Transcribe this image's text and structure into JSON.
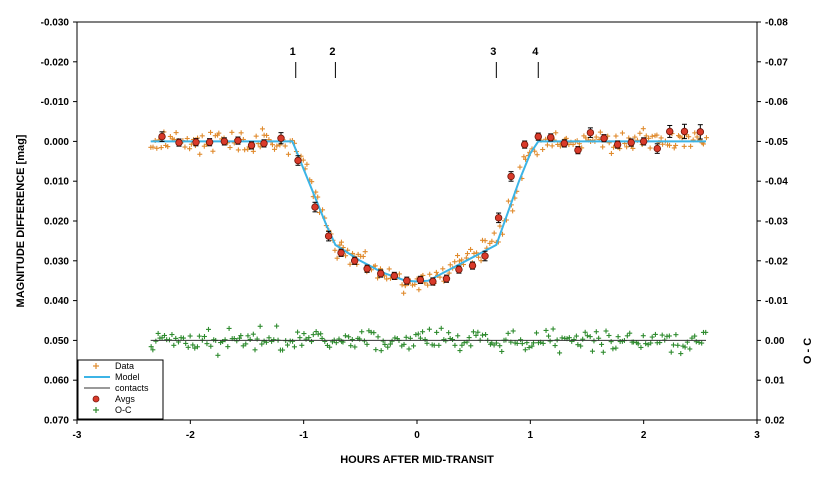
{
  "chart_data": {
    "type": "scatter",
    "xlabel": "HOURS AFTER MID-TRANSIT",
    "ylabel": "MAGNITUDE DIFFERENCE [mag]",
    "y2label": "O - C",
    "xlim": [
      -3,
      3
    ],
    "ylim": [
      -0.03,
      0.07
    ],
    "y2lim": [
      -0.08,
      0.02
    ],
    "y_inverted": true,
    "y2_inverted": true,
    "x_ticks": [
      "-3",
      "-2",
      "-1",
      "0",
      "1",
      "2",
      "3"
    ],
    "y_ticks": [
      "-0.030",
      "-0.020",
      "-0.010",
      "0.000",
      "0.010",
      "0.020",
      "0.030",
      "0.040",
      "0.050",
      "0.060",
      "0.070"
    ],
    "y2_ticks": [
      "-0.08",
      "-0.07",
      "-0.06",
      "-0.05",
      "-0.04",
      "-0.03",
      "-0.02",
      "-0.01",
      "0.00",
      "0.01",
      "0.02"
    ],
    "grid": false,
    "legend_position": "bottom-left",
    "contacts": [
      {
        "label": "1",
        "x": -1.07
      },
      {
        "label": "2",
        "x": -0.72
      },
      {
        "label": "3",
        "x": 0.7
      },
      {
        "label": "4",
        "x": 1.07
      }
    ],
    "series": [
      {
        "name": "Data",
        "marker": "plus",
        "color": "#e08a2c",
        "model_based": true,
        "jitter": 0.0028,
        "count": 260
      },
      {
        "name": "Model",
        "line": true,
        "color": "#3cb4e6",
        "x": [
          -2.35,
          -1.1,
          -1.07,
          -1.0,
          -0.9,
          -0.8,
          -0.72,
          -0.5,
          -0.3,
          -0.1,
          0.0,
          0.1,
          0.3,
          0.5,
          0.7,
          0.8,
          0.9,
          1.0,
          1.07,
          1.1,
          2.55
        ],
        "y": [
          0.0,
          0.0,
          0.002,
          0.007,
          0.014,
          0.021,
          0.026,
          0.03,
          0.033,
          0.035,
          0.0352,
          0.035,
          0.032,
          0.029,
          0.026,
          0.018,
          0.01,
          0.003,
          0.0,
          0.0,
          0.0
        ]
      },
      {
        "name": "contacts",
        "line": true,
        "color": "#333333",
        "x": [
          -2.35,
          2.55
        ],
        "y": [
          0.05,
          0.05
        ]
      },
      {
        "name": "Avgs",
        "marker": "circle",
        "color": "#d93a2a",
        "x": [
          -2.25,
          -2.1,
          -1.95,
          -1.83,
          -1.7,
          -1.58,
          -1.46,
          -1.35,
          -1.2,
          -1.05,
          -0.9,
          -0.78,
          -0.67,
          -0.55,
          -0.44,
          -0.32,
          -0.2,
          -0.09,
          0.03,
          0.14,
          0.26,
          0.37,
          0.49,
          0.6,
          0.72,
          0.83,
          0.95,
          1.07,
          1.18,
          1.3,
          1.42,
          1.53,
          1.65,
          1.77,
          1.89,
          2.0,
          2.12,
          2.23,
          2.36,
          2.5
        ],
        "y": [
          -0.0012,
          0.0003,
          0.0002,
          0.0002,
          0.0,
          -0.0002,
          0.001,
          0.0005,
          -0.0008,
          0.0048,
          0.0165,
          0.0238,
          0.028,
          0.03,
          0.032,
          0.0332,
          0.0338,
          0.035,
          0.0348,
          0.0352,
          0.0345,
          0.0322,
          0.0312,
          0.0288,
          0.0192,
          0.0088,
          0.0008,
          -0.0012,
          -0.001,
          0.0005,
          0.0022,
          -0.0022,
          -0.0008,
          0.0008,
          0.0003,
          0.0,
          0.0018,
          -0.0025,
          -0.0025,
          -0.0024
        ],
        "err": [
          0.0012,
          0.0009,
          0.0009,
          0.0009,
          0.0009,
          0.0009,
          0.0009,
          0.0009,
          0.0014,
          0.0012,
          0.0012,
          0.0012,
          0.0009,
          0.0009,
          0.0009,
          0.0009,
          0.0009,
          0.0009,
          0.0009,
          0.0009,
          0.0009,
          0.0009,
          0.0009,
          0.0012,
          0.0012,
          0.0012,
          0.0009,
          0.0009,
          0.0009,
          0.0009,
          0.0009,
          0.0012,
          0.0009,
          0.0009,
          0.0009,
          0.0009,
          0.0012,
          0.0015,
          0.0018,
          0.0018
        ]
      },
      {
        "name": "O-C",
        "marker": "plus",
        "color": "#2e8b2e",
        "axis": "right",
        "center": 0.0,
        "jitter": 0.0028,
        "count": 240
      }
    ]
  }
}
